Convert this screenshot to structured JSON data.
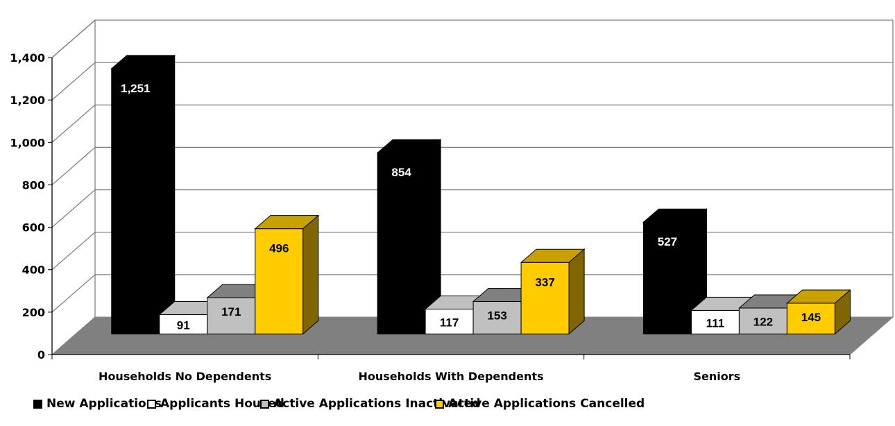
{
  "chart_data": {
    "type": "bar",
    "style": "3d-clustered-column",
    "categories": [
      "Households No Dependents",
      "Households With Dependents",
      "Seniors"
    ],
    "series": [
      {
        "name": "New Applications",
        "values": [
          1251,
          854,
          527
        ],
        "labels": [
          "1,251",
          "854",
          "527"
        ],
        "color": "#000000",
        "side": "#000000",
        "top": "#000000",
        "label_color": "#ffffff"
      },
      {
        "name": "Applicants Housed",
        "values": [
          91,
          117,
          111
        ],
        "labels": [
          "91",
          "117",
          "111"
        ],
        "color": "#ffffff",
        "side": "#ffffff",
        "top": "#c0c0c0",
        "label_color": "#000000"
      },
      {
        "name": "Active Applications Inactivated",
        "values": [
          171,
          153,
          122
        ],
        "labels": [
          "171",
          "153",
          "122"
        ],
        "color": "#c0c0c0",
        "side": "#808080",
        "top": "#808080",
        "label_color": "#000000"
      },
      {
        "name": "Active Applications Cancelled",
        "values": [
          496,
          337,
          145
        ],
        "labels": [
          "496",
          "337",
          "145"
        ],
        "color": "#ffcc00",
        "side": "#806600",
        "top": "#c8a000",
        "label_color": "#000000"
      }
    ],
    "yticks": [
      "0",
      "200",
      "400",
      "600",
      "800",
      "1,000",
      "1,200",
      "1,400"
    ],
    "ylim": [
      0,
      1400
    ],
    "grid": true,
    "legend_position": "bottom",
    "colors": {
      "floor": "#808080",
      "gridline": "#808080",
      "axis": "#808080"
    }
  }
}
